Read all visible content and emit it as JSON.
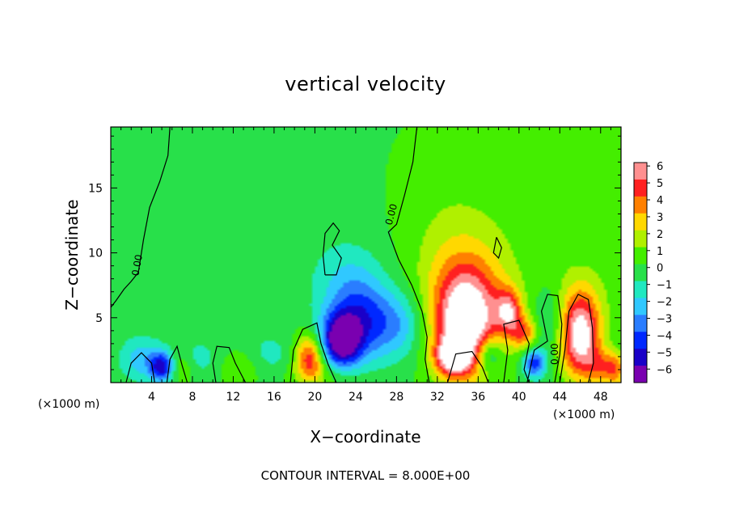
{
  "chart_data": {
    "type": "heatmap",
    "title": "vertical velocity",
    "xlabel": "X−coordinate",
    "ylabel": "Z−coordinate",
    "x_unit": "(×1000 m)",
    "y_unit": "(×1000 m)",
    "x_ticks": [
      4,
      8,
      12,
      16,
      20,
      24,
      28,
      32,
      36,
      40,
      44,
      48
    ],
    "y_ticks": [
      5,
      10,
      15
    ],
    "xlim": [
      0,
      50
    ],
    "ylim": [
      0,
      19.7
    ],
    "contour_interval_text": "CONTOUR INTERVAL = 8.000E+00",
    "contour_label": "0.00",
    "colorbar": {
      "min": -6,
      "max": 6,
      "labels": [
        "6",
        "5",
        "4",
        "3",
        "2",
        "1",
        "0",
        "−1",
        "−2",
        "−3",
        "−4",
        "−5",
        "−6"
      ]
    },
    "features": [
      {
        "x": 22.5,
        "z": 3.2,
        "sx": 1.4,
        "sz": 1.5,
        "w": -6.5
      },
      {
        "x": 24.5,
        "z": 4.8,
        "sx": 2.0,
        "sz": 2.4,
        "w": -3.2
      },
      {
        "x": 28.0,
        "z": 4.5,
        "sx": 2.0,
        "sz": 1.8,
        "w": -2.6
      },
      {
        "x": 23.0,
        "z": 7.5,
        "sx": 2.5,
        "sz": 2.5,
        "w": -1.5
      },
      {
        "x": 19.5,
        "z": 2.0,
        "sx": 1.0,
        "sz": 1.2,
        "w": 4.8
      },
      {
        "x": 21.0,
        "z": 0.6,
        "sx": 2.5,
        "sz": 0.8,
        "w": 1.3
      },
      {
        "x": 34.8,
        "z": 4.5,
        "sx": 2.2,
        "sz": 2.8,
        "w": 7.2
      },
      {
        "x": 35.5,
        "z": 7.5,
        "sx": 3.5,
        "sz": 3.5,
        "w": 1.8
      },
      {
        "x": 33.5,
        "z": 2.0,
        "sx": 1.2,
        "sz": 1.0,
        "w": 5.5
      },
      {
        "x": 37.0,
        "z": 2.2,
        "sx": 0.9,
        "sz": 1.0,
        "w": -3.2
      },
      {
        "x": 39.0,
        "z": 5.5,
        "sx": 0.9,
        "sz": 1.2,
        "w": 4.5
      },
      {
        "x": 40.5,
        "z": 3.8,
        "sx": 0.9,
        "sz": 0.9,
        "w": 3.5
      },
      {
        "x": 41.5,
        "z": 1.5,
        "sx": 0.8,
        "sz": 0.8,
        "w": -4.5
      },
      {
        "x": 43.0,
        "z": 5.0,
        "sx": 1.2,
        "sz": 2.0,
        "w": -1.5
      },
      {
        "x": 46.0,
        "z": 3.5,
        "sx": 1.4,
        "sz": 2.2,
        "w": 7.2
      },
      {
        "x": 46.0,
        "z": 7.0,
        "sx": 2.5,
        "sz": 2.0,
        "w": 1.2
      },
      {
        "x": 48.0,
        "z": 1.2,
        "sx": 1.0,
        "sz": 0.9,
        "w": 2.5
      },
      {
        "x": 49.5,
        "z": 1.0,
        "sx": 0.8,
        "sz": 1.0,
        "w": 3.2
      },
      {
        "x": 5.0,
        "z": 1.2,
        "sx": 0.8,
        "sz": 0.8,
        "w": -5.0
      },
      {
        "x": 3.0,
        "z": 1.8,
        "sx": 1.5,
        "sz": 1.2,
        "w": -2.4
      },
      {
        "x": 7.0,
        "z": 1.3,
        "sx": 1.0,
        "sz": 0.9,
        "w": 1.6
      },
      {
        "x": 8.5,
        "z": 1.8,
        "sx": 1.5,
        "sz": 1.0,
        "w": -1.5
      },
      {
        "x": 13.0,
        "z": 1.2,
        "sx": 2.0,
        "sz": 1.0,
        "w": 1.0
      },
      {
        "x": 15.5,
        "z": 2.0,
        "sx": 1.5,
        "sz": 1.2,
        "w": -1.4
      },
      {
        "x": 10.0,
        "z": 12.0,
        "sx": 10.0,
        "sz": 6.0,
        "w": -0.3
      },
      {
        "x": 40.0,
        "z": 16.0,
        "sx": 10.0,
        "sz": 5.0,
        "w": 0.4
      },
      {
        "x": 33.0,
        "z": 10.0,
        "sx": 3.0,
        "sz": 4.0,
        "w": 0.8
      }
    ],
    "zero_contours": [
      [
        [
          5.8,
          19.7
        ],
        [
          5.6,
          17.5
        ],
        [
          4.8,
          15.5
        ],
        [
          3.8,
          13.5
        ],
        [
          3.2,
          11.0
        ],
        [
          2.7,
          8.5
        ],
        [
          2.0,
          7.8
        ],
        [
          1.3,
          7.2
        ],
        [
          0.5,
          6.3
        ],
        [
          0.0,
          5.8
        ]
      ],
      [
        [
          30.0,
          19.7
        ],
        [
          29.6,
          17.0
        ],
        [
          28.8,
          14.5
        ],
        [
          28.0,
          12.2
        ],
        [
          27.2,
          11.6
        ],
        [
          28.2,
          9.5
        ],
        [
          29.5,
          7.5
        ],
        [
          30.5,
          5.5
        ],
        [
          31.0,
          3.5
        ],
        [
          30.8,
          1.8
        ],
        [
          31.2,
          0.0
        ]
      ],
      [
        [
          21.0,
          8.3
        ],
        [
          20.8,
          9.8
        ],
        [
          21.0,
          11.5
        ],
        [
          21.8,
          12.3
        ],
        [
          22.4,
          11.7
        ],
        [
          21.7,
          10.6
        ],
        [
          22.6,
          9.6
        ],
        [
          22.1,
          8.3
        ],
        [
          21.0,
          8.3
        ]
      ],
      [
        [
          37.8,
          11.2
        ],
        [
          37.5,
          10.0
        ],
        [
          38.0,
          9.6
        ],
        [
          38.3,
          10.4
        ],
        [
          37.8,
          11.2
        ]
      ],
      [
        [
          17.6,
          0.0
        ],
        [
          17.9,
          2.5
        ],
        [
          18.8,
          4.1
        ],
        [
          20.2,
          4.6
        ],
        [
          20.6,
          3.0
        ],
        [
          21.3,
          1.4
        ],
        [
          22.1,
          0.0
        ]
      ],
      [
        [
          13.2,
          0.0
        ],
        [
          12.2,
          1.5
        ],
        [
          11.6,
          2.7
        ],
        [
          10.4,
          2.8
        ],
        [
          10.0,
          1.5
        ],
        [
          10.3,
          0.0
        ]
      ],
      [
        [
          5.5,
          0.0
        ],
        [
          5.8,
          1.8
        ],
        [
          6.5,
          2.8
        ],
        [
          7.0,
          1.3
        ],
        [
          7.5,
          0.0
        ]
      ],
      [
        [
          38.5,
          0.0
        ],
        [
          38.9,
          2.5
        ],
        [
          38.5,
          4.5
        ],
        [
          40.0,
          4.8
        ],
        [
          41.0,
          3.0
        ],
        [
          40.5,
          1.0
        ],
        [
          41.0,
          0.0
        ]
      ],
      [
        [
          40.8,
          0.0
        ],
        [
          41.5,
          2.5
        ],
        [
          42.8,
          3.2
        ],
        [
          42.2,
          5.5
        ],
        [
          42.8,
          6.8
        ],
        [
          43.8,
          6.7
        ],
        [
          44.2,
          4.5
        ],
        [
          44.0,
          2.2
        ],
        [
          43.5,
          0.0
        ]
      ],
      [
        [
          44.0,
          0.0
        ],
        [
          44.5,
          2.5
        ],
        [
          44.9,
          5.5
        ],
        [
          45.8,
          6.8
        ],
        [
          46.8,
          6.4
        ],
        [
          47.2,
          4.2
        ],
        [
          47.3,
          1.5
        ],
        [
          46.8,
          0.0
        ]
      ],
      [
        [
          33.0,
          0.0
        ],
        [
          33.8,
          2.2
        ],
        [
          35.4,
          2.4
        ],
        [
          36.4,
          1.2
        ],
        [
          37.0,
          0.0
        ]
      ],
      [
        [
          1.5,
          0.0
        ],
        [
          2.0,
          1.5
        ],
        [
          3.0,
          2.3
        ],
        [
          4.0,
          1.5
        ],
        [
          4.3,
          0.0
        ]
      ]
    ]
  }
}
